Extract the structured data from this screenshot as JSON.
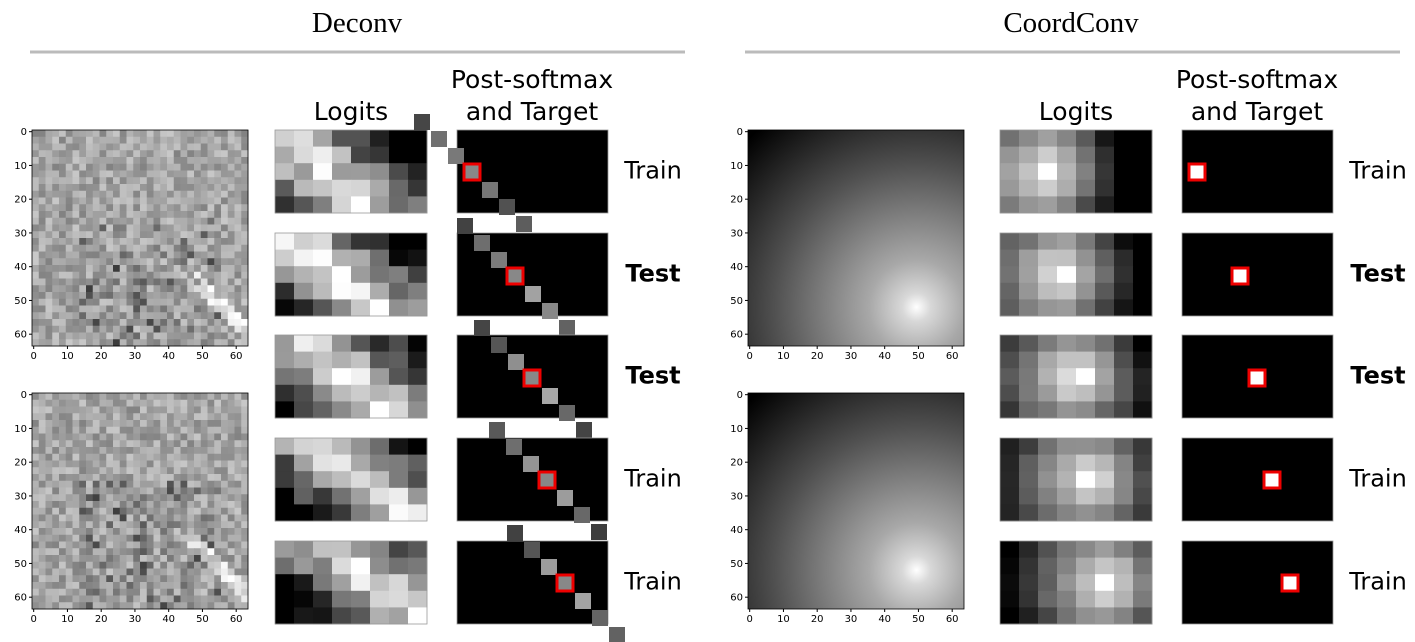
{
  "panels": [
    {
      "title": "Deconv",
      "logits_header": "Logits",
      "softmax_header": [
        "Post-softmax",
        "and Target"
      ],
      "rows": [
        {
          "label": "Train",
          "bold": false
        },
        {
          "label": "Test",
          "bold": true
        },
        {
          "label": "Test",
          "bold": true
        },
        {
          "label": "Train",
          "bold": false
        },
        {
          "label": "Train",
          "bold": false
        }
      ],
      "maps": [
        {
          "xticks": [
            0,
            10,
            20,
            30,
            40,
            50,
            60
          ],
          "yticks": [
            0,
            10,
            20,
            30,
            40,
            50,
            60
          ]
        },
        {
          "xticks": [
            0,
            10,
            20,
            30,
            40,
            50,
            60
          ],
          "yticks": [
            0,
            10,
            20,
            30,
            40,
            50,
            60
          ]
        }
      ]
    },
    {
      "title": "CoordConv",
      "logits_header": "Logits",
      "softmax_header": [
        "Post-softmax",
        "and Target"
      ],
      "rows": [
        {
          "label": "Train",
          "bold": false
        },
        {
          "label": "Test",
          "bold": true
        },
        {
          "label": "Test",
          "bold": true
        },
        {
          "label": "Train",
          "bold": false
        },
        {
          "label": "Train",
          "bold": false
        }
      ],
      "maps": [
        {
          "xticks": [
            0,
            10,
            20,
            30,
            40,
            50,
            60
          ],
          "yticks": [
            0,
            10,
            20,
            30,
            40,
            50,
            60
          ]
        },
        {
          "xticks": [
            0,
            10,
            20,
            30,
            40,
            50,
            60
          ],
          "yticks": [
            0,
            10,
            20,
            30,
            40,
            50,
            60
          ]
        }
      ]
    }
  ]
}
